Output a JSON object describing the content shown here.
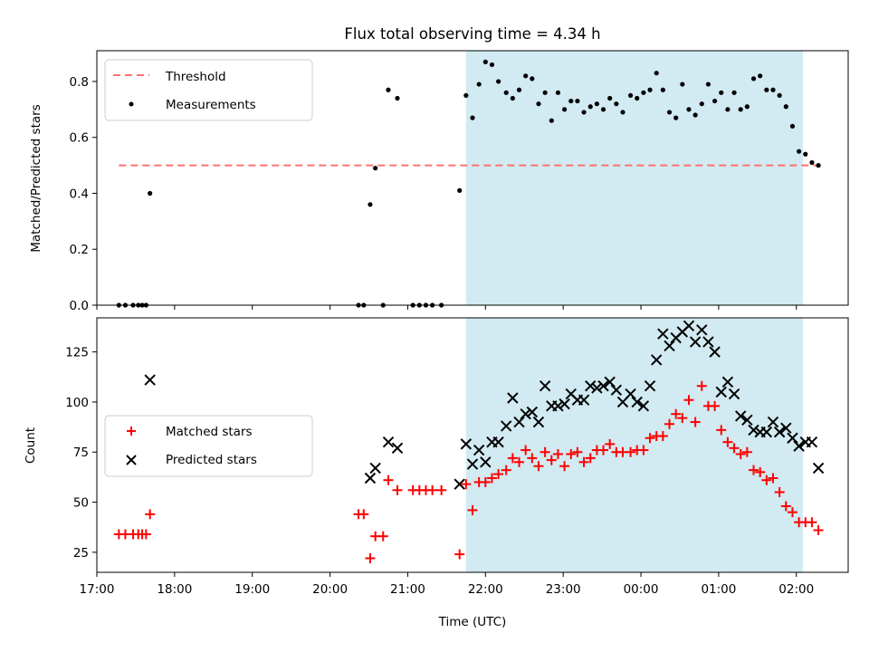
{
  "figure_title": "Flux total observing time = 4.34 h",
  "colors": {
    "band": "#add8e6",
    "threshold": "#ff7070",
    "measurement": "#000000",
    "matched": "#ff0000",
    "predicted": "#000000"
  },
  "chart_data": [
    {
      "type": "scatter",
      "panel": "top",
      "title": "Flux total observing time = 4.34 h",
      "xlabel": "",
      "ylabel": "Matched/Predicted stars",
      "xlim": [
        "17:00",
        "02:40"
      ],
      "ylim": [
        0,
        0.91
      ],
      "yticks": [
        "0.0",
        "0.2",
        "0.4",
        "0.6",
        "0.8"
      ],
      "highlight_band": {
        "from": "21:45",
        "to": "02:05"
      },
      "legend_position": "upper-left",
      "threshold": {
        "name": "Threshold",
        "y": 0.5,
        "x_from": "17:17",
        "x_to": "02:17",
        "style": "dashed"
      },
      "series": [
        {
          "name": "Measurements",
          "marker": "dot",
          "x": [
            "17:17",
            "17:22",
            "17:28",
            "17:32",
            "17:35",
            "17:38",
            "17:41",
            "20:22",
            "20:26",
            "20:31",
            "20:35",
            "20:41",
            "20:45",
            "20:52",
            "21:04",
            "21:09",
            "21:14",
            "21:19",
            "21:26",
            "21:40",
            "21:45",
            "21:50",
            "21:55",
            "22:00",
            "22:05",
            "22:10",
            "22:16",
            "22:21",
            "22:26",
            "22:31",
            "22:36",
            "22:41",
            "22:46",
            "22:51",
            "22:56",
            "23:01",
            "23:06",
            "23:11",
            "23:16",
            "23:21",
            "23:26",
            "23:31",
            "23:36",
            "23:41",
            "23:46",
            "23:52",
            "23:57",
            "00:02",
            "00:07",
            "00:12",
            "00:17",
            "00:22",
            "00:27",
            "00:32",
            "00:37",
            "00:42",
            "00:47",
            "00:52",
            "00:57",
            "01:02",
            "01:07",
            "01:12",
            "01:17",
            "01:22",
            "01:27",
            "01:32",
            "01:37",
            "01:42",
            "01:47",
            "01:52",
            "01:57",
            "02:02",
            "02:07",
            "02:12",
            "02:17"
          ],
          "y": [
            0.0,
            0.0,
            0.0,
            0.0,
            0.0,
            0.0,
            0.4,
            0.0,
            0.0,
            0.36,
            0.49,
            0.0,
            0.77,
            0.74,
            0.0,
            0.0,
            0.0,
            0.0,
            0.0,
            0.41,
            0.75,
            0.67,
            0.79,
            0.87,
            0.86,
            0.8,
            0.76,
            0.74,
            0.77,
            0.82,
            0.81,
            0.72,
            0.76,
            0.66,
            0.76,
            0.7,
            0.73,
            0.73,
            0.69,
            0.71,
            0.72,
            0.7,
            0.74,
            0.72,
            0.69,
            0.75,
            0.74,
            0.76,
            0.77,
            0.83,
            0.77,
            0.69,
            0.67,
            0.79,
            0.7,
            0.68,
            0.72,
            0.79,
            0.73,
            0.76,
            0.7,
            0.76,
            0.7,
            0.71,
            0.81,
            0.82,
            0.77,
            0.77,
            0.75,
            0.71,
            0.64,
            0.55,
            0.54,
            0.51,
            0.5
          ]
        }
      ]
    },
    {
      "type": "scatter",
      "panel": "bottom",
      "xlabel": "Time (UTC)",
      "ylabel": "Count",
      "xlim": [
        "17:00",
        "02:40"
      ],
      "ylim": [
        15,
        142
      ],
      "yticks": [
        "25",
        "50",
        "75",
        "100",
        "125"
      ],
      "xticks": [
        "17:00",
        "18:00",
        "19:00",
        "20:00",
        "21:00",
        "22:00",
        "23:00",
        "00:00",
        "01:00",
        "02:00"
      ],
      "highlight_band": {
        "from": "21:45",
        "to": "02:05"
      },
      "legend_position": "center-left",
      "series": [
        {
          "name": "Matched stars",
          "marker": "plus",
          "x": [
            "17:17",
            "17:22",
            "17:28",
            "17:32",
            "17:35",
            "17:38",
            "17:41",
            "20:22",
            "20:26",
            "20:31",
            "20:35",
            "20:41",
            "20:45",
            "20:52",
            "21:04",
            "21:09",
            "21:14",
            "21:19",
            "21:26",
            "21:40",
            "21:45",
            "21:50",
            "21:55",
            "22:00",
            "22:05",
            "22:10",
            "22:16",
            "22:21",
            "22:26",
            "22:31",
            "22:36",
            "22:41",
            "22:46",
            "22:51",
            "22:56",
            "23:01",
            "23:06",
            "23:11",
            "23:16",
            "23:21",
            "23:26",
            "23:31",
            "23:36",
            "23:41",
            "23:46",
            "23:52",
            "23:57",
            "00:02",
            "00:07",
            "00:12",
            "00:17",
            "00:22",
            "00:27",
            "00:32",
            "00:37",
            "00:42",
            "00:47",
            "00:52",
            "00:57",
            "01:02",
            "01:07",
            "01:12",
            "01:17",
            "01:22",
            "01:27",
            "01:32",
            "01:37",
            "01:42",
            "01:47",
            "01:52",
            "01:57",
            "02:02",
            "02:07",
            "02:12",
            "02:17"
          ],
          "y": [
            34,
            34,
            34,
            34,
            34,
            34,
            44,
            44,
            44,
            22,
            33,
            33,
            61,
            56,
            56,
            56,
            56,
            56,
            56,
            24,
            59,
            46,
            60,
            60,
            62,
            64,
            66,
            72,
            70,
            76,
            72,
            68,
            75,
            71,
            74,
            68,
            74,
            75,
            70,
            72,
            76,
            76,
            79,
            75,
            75,
            75,
            76,
            76,
            82,
            83,
            83,
            89,
            94,
            92,
            101,
            90,
            108,
            98,
            98,
            86,
            80,
            77,
            74,
            75,
            66,
            65,
            61,
            62,
            55,
            48,
            45,
            40,
            40,
            40,
            36
          ]
        },
        {
          "name": "Predicted stars",
          "marker": "x",
          "x": [
            "17:41",
            "20:31",
            "20:35",
            "20:45",
            "20:52",
            "21:40",
            "21:45",
            "21:50",
            "21:55",
            "22:00",
            "22:05",
            "22:10",
            "22:16",
            "22:21",
            "22:26",
            "22:31",
            "22:36",
            "22:41",
            "22:46",
            "22:51",
            "22:56",
            "23:01",
            "23:06",
            "23:11",
            "23:16",
            "23:21",
            "23:26",
            "23:31",
            "23:36",
            "23:41",
            "23:46",
            "23:52",
            "23:57",
            "00:02",
            "00:07",
            "00:12",
            "00:17",
            "00:22",
            "00:27",
            "00:32",
            "00:37",
            "00:42",
            "00:47",
            "00:52",
            "00:57",
            "01:02",
            "01:07",
            "01:12",
            "01:17",
            "01:22",
            "01:27",
            "01:32",
            "01:37",
            "01:42",
            "01:47",
            "01:52",
            "01:57",
            "02:02",
            "02:07",
            "02:12",
            "02:17"
          ],
          "y": [
            111,
            62,
            67,
            80,
            77,
            59,
            79,
            69,
            76,
            70,
            80,
            80,
            88,
            102,
            90,
            94,
            95,
            90,
            108,
            98,
            98,
            99,
            104,
            101,
            101,
            108,
            107,
            108,
            110,
            106,
            100,
            104,
            100,
            98,
            108,
            121,
            134,
            128,
            132,
            135,
            138,
            130,
            136,
            130,
            125,
            105,
            110,
            104,
            93,
            91,
            86,
            85,
            85,
            90,
            85,
            87,
            82,
            78,
            80,
            80,
            67
          ]
        }
      ]
    }
  ]
}
